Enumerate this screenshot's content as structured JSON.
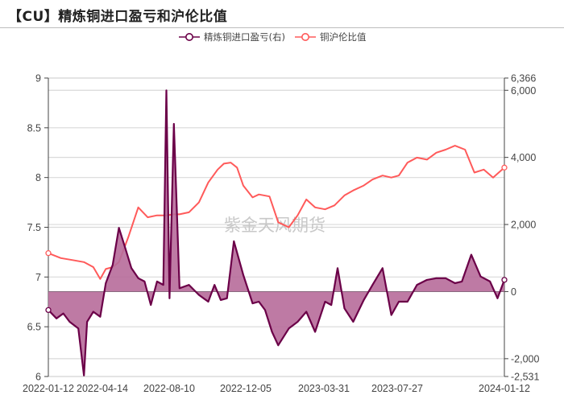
{
  "header": {
    "title": "【CU】精炼铜进口盈亏和沪伦比值"
  },
  "legend": [
    {
      "label": "精炼铜进口盈亏(右)",
      "color": "#6b0048"
    },
    {
      "label": "铜沪伦比值",
      "color": "#ff5a5a"
    }
  ],
  "watermark": "紫金天风期货",
  "colors": {
    "profit_line": "#6b0048",
    "profit_fill": "#b76b9a",
    "ratio_line": "#ff5a5a",
    "grid": "#d9d9d9",
    "axis": "#444444"
  },
  "chart_data": {
    "type": "line",
    "title": "【CU】精炼铜进口盈亏和沪伦比值",
    "xlabel": "",
    "x_ticks": [
      "2022-01-12",
      "2022-04-14",
      "2022-08-10",
      "2022-12-05",
      "2023-03-31",
      "2023-07-27",
      "2024-01-12"
    ],
    "left_axis": {
      "label": "铜沪伦比值",
      "ticks": [
        "9",
        "8.5",
        "8",
        "7.5",
        "7",
        "6.5",
        "6"
      ],
      "ylim": [
        6,
        9
      ]
    },
    "right_axis": {
      "label": "精炼铜进口盈亏",
      "ticks": [
        "6,366",
        "6,000",
        "4,000",
        "2,000",
        "0",
        "-2,000",
        "-2,531"
      ],
      "ylim": [
        -2531,
        6366
      ]
    },
    "grid": true,
    "legend_position": "top",
    "series": [
      {
        "name": "铜沪伦比值",
        "axis": "left",
        "style": "line",
        "x": [
          "2022-01-12",
          "2022-02-01",
          "2022-02-20",
          "2022-03-10",
          "2022-03-25",
          "2022-04-05",
          "2022-04-14",
          "2022-04-25",
          "2022-05-05",
          "2022-05-20",
          "2022-06-05",
          "2022-06-20",
          "2022-07-05",
          "2022-07-20",
          "2022-08-01",
          "2022-08-10",
          "2022-08-25",
          "2022-09-10",
          "2022-09-25",
          "2022-10-10",
          "2022-10-20",
          "2022-10-31",
          "2022-11-10",
          "2022-11-20",
          "2022-12-05",
          "2022-12-15",
          "2023-01-01",
          "2023-01-15",
          "2023-02-01",
          "2023-02-15",
          "2023-03-01",
          "2023-03-15",
          "2023-03-31",
          "2023-04-15",
          "2023-05-01",
          "2023-05-15",
          "2023-06-01",
          "2023-06-15",
          "2023-07-01",
          "2023-07-15",
          "2023-07-27",
          "2023-08-10",
          "2023-08-25",
          "2023-09-10",
          "2023-09-25",
          "2023-10-10",
          "2023-10-25",
          "2023-11-10",
          "2023-11-25",
          "2023-12-10",
          "2023-12-25",
          "2024-01-12"
        ],
        "values": [
          7.24,
          7.19,
          7.17,
          7.15,
          7.1,
          6.98,
          7.08,
          7.1,
          7.15,
          7.4,
          7.7,
          7.6,
          7.62,
          7.62,
          7.63,
          7.63,
          7.65,
          7.75,
          7.95,
          8.08,
          8.14,
          8.15,
          8.1,
          7.92,
          7.8,
          7.83,
          7.81,
          7.55,
          7.5,
          7.62,
          7.78,
          7.7,
          7.68,
          7.72,
          7.82,
          7.87,
          7.92,
          7.98,
          8.02,
          8.0,
          8.02,
          8.15,
          8.2,
          8.18,
          8.25,
          8.28,
          8.32,
          8.28,
          8.05,
          8.08,
          8.0,
          8.1
        ]
      },
      {
        "name": "精炼铜进口盈亏(右)",
        "axis": "right",
        "style": "area",
        "x": [
          "2022-01-12",
          "2022-01-25",
          "2022-02-05",
          "2022-02-15",
          "2022-03-01",
          "2022-03-10",
          "2022-03-15",
          "2022-03-25",
          "2022-04-05",
          "2022-04-14",
          "2022-04-25",
          "2022-05-05",
          "2022-05-15",
          "2022-05-25",
          "2022-06-05",
          "2022-06-15",
          "2022-06-25",
          "2022-07-05",
          "2022-07-15",
          "2022-07-20",
          "2022-07-25",
          "2022-08-01",
          "2022-08-10",
          "2022-08-25",
          "2022-09-10",
          "2022-09-25",
          "2022-10-05",
          "2022-10-15",
          "2022-10-25",
          "2022-11-05",
          "2022-11-20",
          "2022-12-05",
          "2022-12-15",
          "2022-12-25",
          "2023-01-05",
          "2023-01-15",
          "2023-02-01",
          "2023-02-15",
          "2023-03-01",
          "2023-03-15",
          "2023-03-31",
          "2023-04-10",
          "2023-04-20",
          "2023-05-01",
          "2023-05-15",
          "2023-06-01",
          "2023-06-15",
          "2023-07-01",
          "2023-07-15",
          "2023-07-27",
          "2023-08-10",
          "2023-08-25",
          "2023-09-10",
          "2023-09-25",
          "2023-10-10",
          "2023-10-25",
          "2023-11-05",
          "2023-11-20",
          "2023-12-05",
          "2023-12-20",
          "2024-01-01",
          "2024-01-12"
        ],
        "values": [
          -550,
          -800,
          -650,
          -900,
          -1100,
          -2500,
          -900,
          -600,
          -750,
          250,
          800,
          1900,
          1300,
          700,
          400,
          300,
          -400,
          300,
          200,
          6000,
          -200,
          5000,
          100,
          200,
          -100,
          -300,
          200,
          -250,
          -200,
          1500,
          500,
          -350,
          -300,
          -550,
          -1200,
          -1600,
          -1100,
          -900,
          -600,
          -1200,
          -300,
          -400,
          700,
          -500,
          -900,
          -250,
          200,
          700,
          -700,
          -300,
          -300,
          200,
          350,
          400,
          400,
          250,
          300,
          1100,
          450,
          300,
          -200,
          350
        ]
      }
    ]
  }
}
